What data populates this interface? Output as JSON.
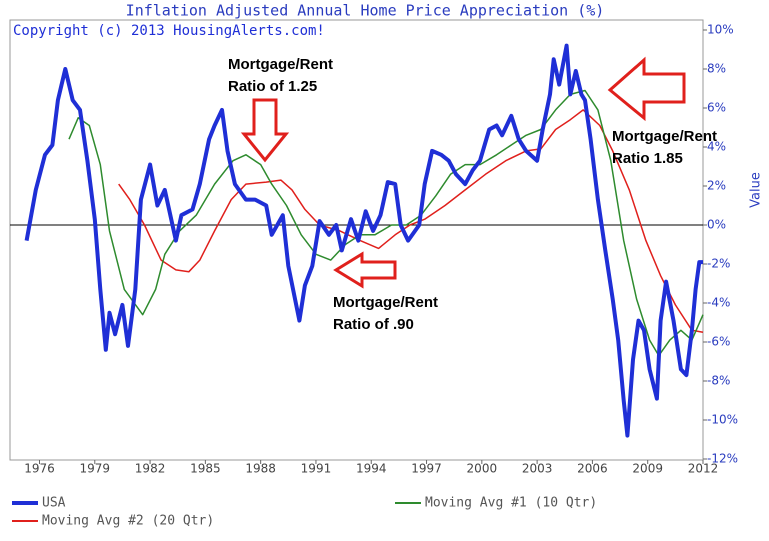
{
  "chart_data": {
    "type": "line",
    "title": "Inflation Adjusted Annual Home Price Appreciation (%)",
    "subtitle": "Copyright (c) 2013 HousingAlerts.com!",
    "y_label": "Value",
    "xlim": [
      1974.4,
      2012
    ],
    "xticks": [
      1976,
      1979,
      1982,
      1985,
      1988,
      1991,
      1994,
      1997,
      2000,
      2003,
      2006,
      2009,
      2012
    ],
    "ylim": [
      -12,
      10
    ],
    "yticks": [
      {
        "value": 10,
        "label": "10%"
      },
      {
        "value": 8,
        "label": "8%"
      },
      {
        "value": 6,
        "label": "6%"
      },
      {
        "value": 4,
        "label": "4%"
      },
      {
        "value": 2,
        "label": "2%"
      },
      {
        "value": 0,
        "label": "0%"
      },
      {
        "value": -2,
        "label": "-2%"
      },
      {
        "value": -4,
        "label": "-4%"
      },
      {
        "value": -6,
        "label": "-6%"
      },
      {
        "value": -8,
        "label": "-8%"
      },
      {
        "value": -10,
        "label": "-10%"
      },
      {
        "value": -12,
        "label": "-12%"
      }
    ],
    "series": [
      {
        "name": "USA",
        "color": "#1f2fd6",
        "x": [
          1975.3,
          1975.8,
          1976.3,
          1976.7,
          1977.0,
          1977.4,
          1977.8,
          1978.2,
          1978.6,
          1979.0,
          1979.3,
          1979.6,
          1979.8,
          1980.1,
          1980.5,
          1980.8,
          1981.2,
          1981.5,
          1982.0,
          1982.4,
          1982.8,
          1983.4,
          1983.7,
          1984.3,
          1984.7,
          1985.2,
          1985.5,
          1985.9,
          1986.2,
          1986.6,
          1987.2,
          1987.7,
          1988.3,
          1988.6,
          1989.2,
          1989.5,
          1990.1,
          1990.4,
          1990.8,
          1991.2,
          1991.7,
          1992.1,
          1992.4,
          1992.9,
          1993.3,
          1993.7,
          1994.1,
          1994.5,
          1994.9,
          1995.3,
          1995.6,
          1996.0,
          1996.6,
          1996.9,
          1997.3,
          1997.8,
          1998.2,
          1998.6,
          1999.1,
          1999.5,
          1999.9,
          2000.4,
          2000.8,
          2001.1,
          2001.6,
          2002.0,
          2002.4,
          2003.0,
          2003.3,
          2003.7,
          2003.9,
          2004.2,
          2004.6,
          2004.8,
          2005.1,
          2005.4,
          2005.6,
          2005.9,
          2006.3,
          2006.7,
          2007.1,
          2007.4,
          2007.7,
          2007.9,
          2008.2,
          2008.5,
          2008.8,
          2009.1,
          2009.5,
          2009.7,
          2010.0,
          2010.4,
          2010.8,
          2011.1,
          2011.4,
          2011.6,
          2011.8,
          2012.0
        ],
        "values": [
          -0.8,
          1.8,
          3.6,
          4.1,
          6.4,
          8.0,
          6.4,
          5.9,
          3.3,
          0.3,
          -3.3,
          -6.4,
          -4.5,
          -5.6,
          -4.1,
          -6.2,
          -3.3,
          1.3,
          3.1,
          1.0,
          1.8,
          -0.8,
          0.5,
          0.8,
          2.1,
          4.4,
          5.1,
          5.9,
          3.8,
          2.1,
          1.3,
          1.3,
          1.0,
          -0.5,
          0.5,
          -2.1,
          -4.9,
          -3.1,
          -2.1,
          0.2,
          -0.5,
          0,
          -1.3,
          0.3,
          -0.8,
          0.7,
          -0.3,
          0.5,
          2.2,
          2.1,
          0,
          -0.8,
          0,
          2.1,
          3.8,
          3.6,
          3.3,
          2.6,
          2.1,
          2.8,
          3.3,
          4.9,
          5.1,
          4.6,
          5.6,
          4.4,
          3.8,
          3.3,
          4.9,
          6.7,
          8.5,
          7.2,
          9.2,
          6.7,
          7.9,
          6.7,
          6.4,
          4.4,
          1.3,
          -1.3,
          -3.8,
          -5.9,
          -9.0,
          -10.8,
          -6.9,
          -4.9,
          -5.4,
          -7.4,
          -8.9,
          -4.9,
          -2.9,
          -4.9,
          -7.4,
          -7.7,
          -5.4,
          -3.3,
          -1.9,
          -1.9
        ]
      },
      {
        "name": "Moving Avg #1 (10 Qtr)",
        "color": "#2e8b2e",
        "x": [
          1977.6,
          1978.1,
          1978.7,
          1979.3,
          1979.8,
          1980.6,
          1981.6,
          1982.3,
          1982.8,
          1983.6,
          1984.5,
          1985.5,
          1986.5,
          1987.2,
          1988.0,
          1988.6,
          1989.4,
          1990.2,
          1991.0,
          1991.8,
          1992.6,
          1993.4,
          1994.2,
          1995.1,
          1995.9,
          1996.7,
          1997.5,
          1998.3,
          1999.1,
          1999.9,
          2000.8,
          2001.6,
          2002.4,
          2003.2,
          2004.0,
          2004.8,
          2005.6,
          2006.3,
          2007.0,
          2007.7,
          2008.4,
          2009.1,
          2009.6,
          2010.2,
          2010.8,
          2011.4,
          2012.0
        ],
        "values": [
          4.4,
          5.5,
          5.1,
          3.1,
          -0.3,
          -3.3,
          -4.6,
          -3.3,
          -1.5,
          -0.3,
          0.5,
          2.1,
          3.3,
          3.6,
          3.1,
          2.1,
          1.0,
          -0.5,
          -1.5,
          -1.8,
          -1.0,
          -0.5,
          -0.5,
          0,
          0,
          0.5,
          1.5,
          2.6,
          3.1,
          3.1,
          3.6,
          4.1,
          4.6,
          4.9,
          5.9,
          6.7,
          6.9,
          5.9,
          3.3,
          -0.8,
          -3.8,
          -5.9,
          -6.7,
          -5.9,
          -5.4,
          -5.9,
          -4.6
        ]
      },
      {
        "name": "Moving Avg #2 (20 Qtr)",
        "color": "#e0201c",
        "x": [
          1980.3,
          1980.9,
          1981.7,
          1982.6,
          1983.4,
          1984.1,
          1984.7,
          1985.5,
          1986.4,
          1987.2,
          1988.3,
          1989.1,
          1989.7,
          1990.4,
          1991.2,
          1992.3,
          1993.4,
          1994.4,
          1995.3,
          1996.1,
          1996.9,
          1998.0,
          1999.1,
          2000.2,
          2001.3,
          2002.4,
          2003.2,
          2004.0,
          2004.8,
          2005.5,
          2006.4,
          2007.1,
          2008.0,
          2008.9,
          2009.7,
          2010.5,
          2011.4,
          2012.0
        ],
        "values": [
          2.1,
          1.3,
          0,
          -1.8,
          -2.3,
          -2.4,
          -1.8,
          -0.3,
          1.3,
          2.1,
          2.2,
          2.3,
          1.8,
          0.8,
          0,
          -0.3,
          -0.8,
          -1.2,
          -0.5,
          0,
          0.3,
          1.0,
          1.8,
          2.6,
          3.3,
          3.8,
          3.9,
          4.9,
          5.4,
          5.9,
          5.1,
          3.8,
          1.8,
          -0.8,
          -2.6,
          -4.1,
          -5.4,
          -5.5
        ]
      }
    ],
    "annotations": [
      {
        "lines": [
          "Mortgage/Rent",
          "Ratio of 1.25"
        ]
      },
      {
        "lines": [
          "Mortgage/Rent",
          "Ratio 1.85"
        ]
      },
      {
        "lines": [
          "Mortgage/Rent",
          "Ratio of .90"
        ]
      }
    ]
  }
}
